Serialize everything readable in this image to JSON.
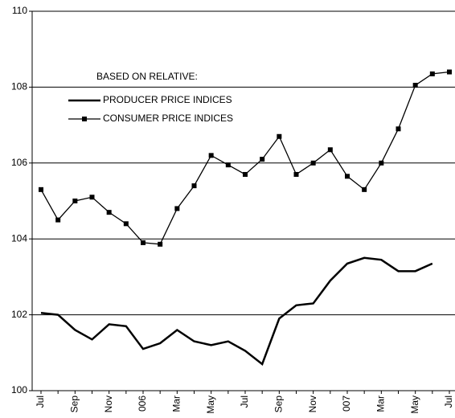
{
  "chart_data": {
    "type": "line",
    "legend_title": "BASED ON RELATIVE:",
    "categories": [
      "Jul",
      null,
      "Sep",
      null,
      "Nov",
      null,
      "006",
      null,
      "Mar",
      null,
      "May",
      null,
      "Jul",
      null,
      "Sep",
      null,
      "Nov",
      null,
      "007",
      null,
      "Mar",
      null,
      "May",
      null,
      "Jul"
    ],
    "series": [
      {
        "name": "PRODUCER PRICE INDICES",
        "color": "#000000",
        "marker": false,
        "values": [
          102.05,
          102.0,
          101.6,
          101.35,
          101.75,
          101.7,
          101.1,
          101.25,
          101.6,
          101.3,
          101.2,
          101.3,
          101.05,
          100.7,
          101.9,
          102.25,
          102.3,
          102.9,
          103.35,
          103.5,
          103.45,
          103.15,
          103.15,
          103.35,
          null
        ]
      },
      {
        "name": "CONSUMER PRICE INDICES",
        "color": "#000000",
        "marker": true,
        "values": [
          105.3,
          104.5,
          105.0,
          105.1,
          104.7,
          104.4,
          103.9,
          103.86,
          104.8,
          105.4,
          106.2,
          105.95,
          105.7,
          106.1,
          106.7,
          105.7,
          106.0,
          106.35,
          105.65,
          105.3,
          106.0,
          106.9,
          108.05,
          108.35,
          108.4
        ]
      }
    ],
    "ylim": [
      100,
      110
    ],
    "yticks": [
      100,
      102,
      104,
      106,
      108,
      110
    ],
    "grid": true
  }
}
